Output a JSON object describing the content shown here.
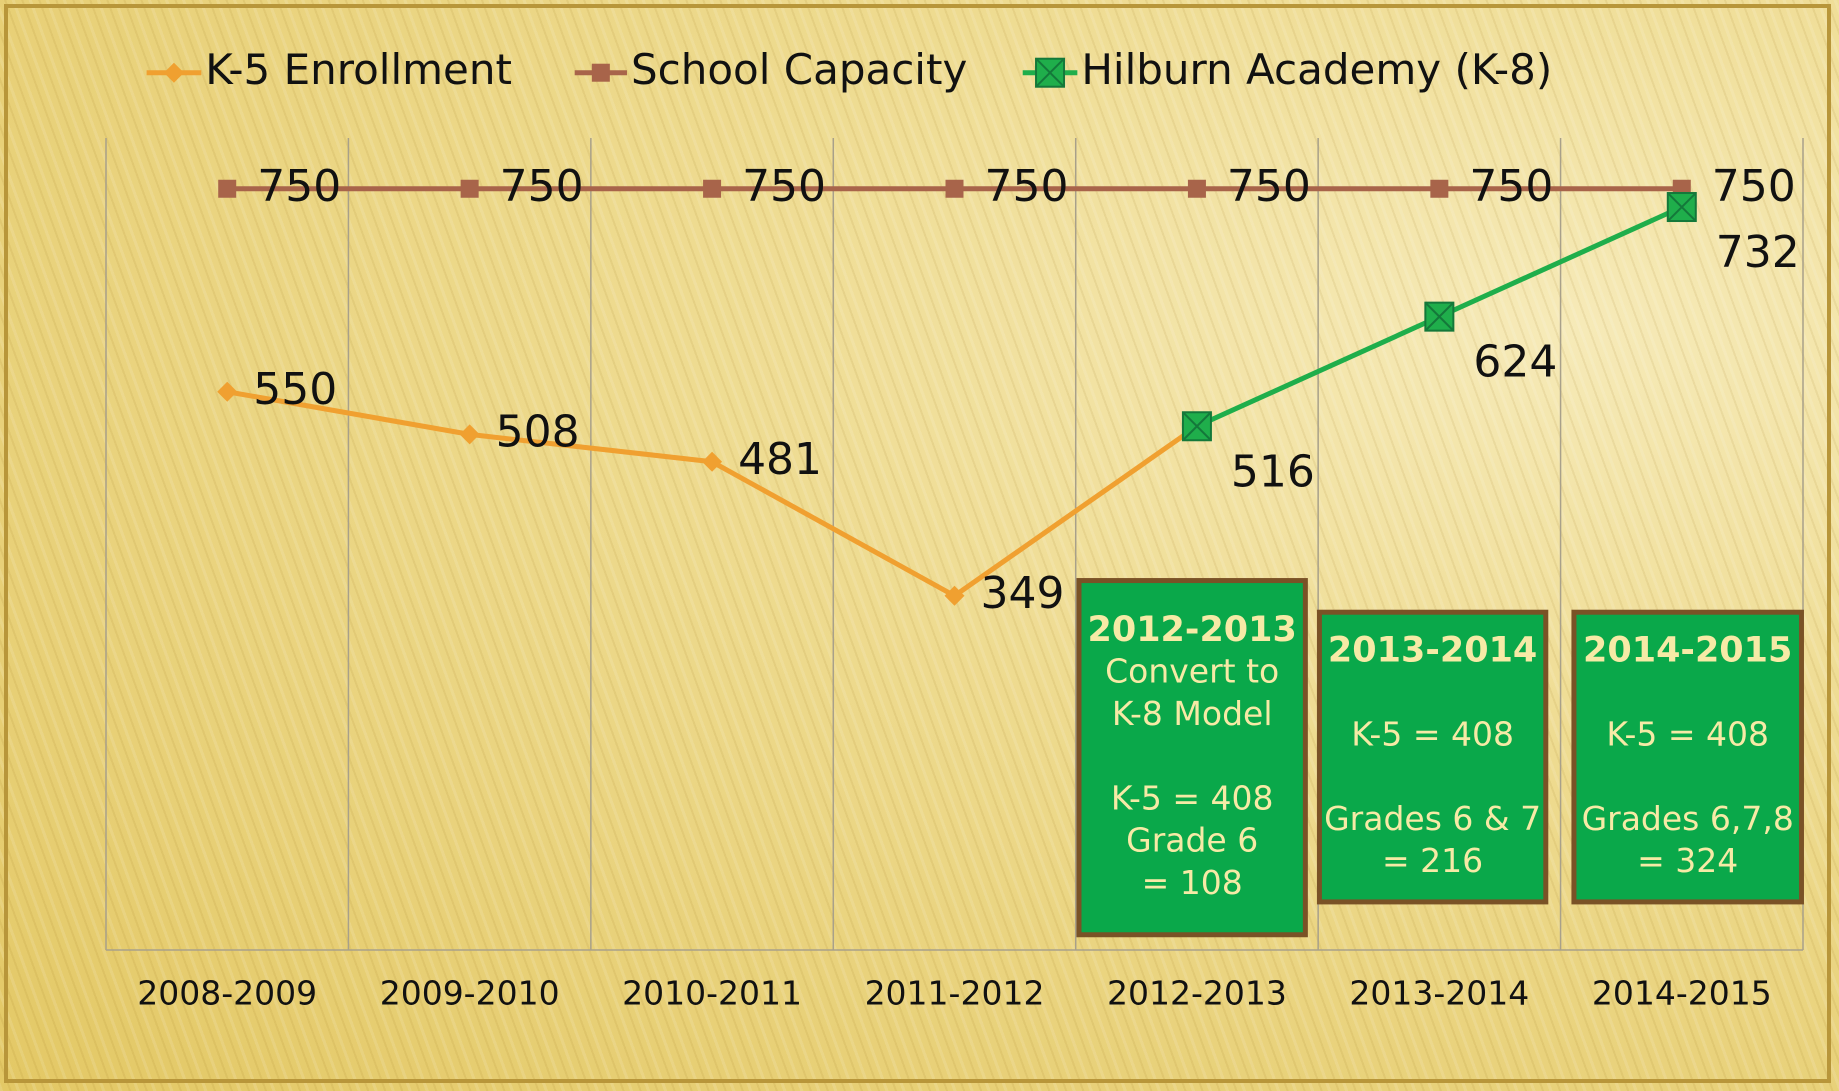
{
  "chart_data": {
    "type": "line",
    "categories": [
      "2008-2009",
      "2009-2010",
      "2010-2011",
      "2011-2012",
      "2012-2013",
      "2013-2014",
      "2014-2015"
    ],
    "series": [
      {
        "name": "K-5 Enrollment",
        "color": "#f0a030",
        "marker": "diamond",
        "values": [
          550,
          508,
          481,
          349,
          516,
          null,
          null
        ],
        "labels": [
          true,
          true,
          true,
          true,
          false,
          false,
          false
        ]
      },
      {
        "name": "School Capacity",
        "color": "#a8644a",
        "marker": "square",
        "values": [
          750,
          750,
          750,
          750,
          750,
          750,
          750
        ],
        "labels": [
          true,
          true,
          true,
          true,
          true,
          true,
          true
        ]
      },
      {
        "name": "Hilburn Academy (K-8)",
        "color": "#1fae4b",
        "marker": "xsquare",
        "values": [
          null,
          null,
          null,
          null,
          516,
          624,
          732
        ],
        "labels": [
          false,
          false,
          false,
          false,
          true,
          true,
          true
        ]
      }
    ],
    "ylim": [
      0,
      800
    ],
    "legend": "top",
    "annotations": [
      {
        "paragraphs": [
          [
            "2012-2013",
            "Convert to",
            "K-8 Model"
          ],
          [
            "K-5 = 408",
            "Grade 6",
            "= 108"
          ]
        ]
      },
      {
        "paragraphs": [
          [
            "2013-2014"
          ],
          [
            "K-5 = 408"
          ],
          [
            "Grades 6 & 7",
            "= 216"
          ]
        ]
      },
      {
        "paragraphs": [
          [
            "2014-2015"
          ],
          [
            "K-5 = 408"
          ],
          [
            "Grades 6,7,8",
            "= 324"
          ]
        ]
      }
    ]
  }
}
